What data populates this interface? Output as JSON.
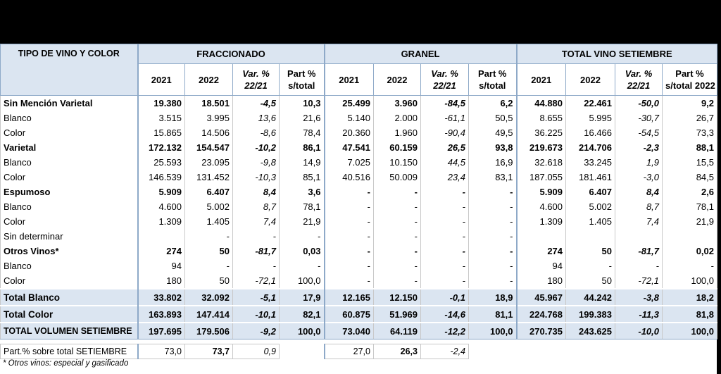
{
  "table": {
    "header": {
      "row_label": "TIPO DE VINO Y COLOR",
      "groups": [
        "FRACCIONADO",
        "GRANEL",
        "TOTAL VINO SETIEMBRE"
      ],
      "columns": [
        [
          [
            "2021"
          ],
          [
            "2022"
          ],
          [
            "Var. %",
            "22/21"
          ],
          [
            "Part %",
            "s/total"
          ]
        ],
        [
          [
            "2021"
          ],
          [
            "2022"
          ],
          [
            "Var. %",
            "22/21"
          ],
          [
            "Part %",
            "s/total"
          ]
        ],
        [
          [
            "2021"
          ],
          [
            "2022"
          ],
          [
            "Var. %",
            "22/21"
          ],
          [
            "Part %",
            "s/total 2022"
          ]
        ]
      ]
    },
    "rows": [
      [
        "Sin Mención Varietal",
        "19.380",
        "18.501",
        "-4,5",
        "10,3",
        "25.499",
        "3.960",
        "-84,5",
        "6,2",
        "44.880",
        "22.461",
        "-50,0",
        "9,2"
      ],
      [
        "Blanco",
        "3.515",
        "3.995",
        "13,6",
        "21,6",
        "5.140",
        "2.000",
        "-61,1",
        "50,5",
        "8.655",
        "5.995",
        "-30,7",
        "26,7"
      ],
      [
        "Color",
        "15.865",
        "14.506",
        "-8,6",
        "78,4",
        "20.360",
        "1.960",
        "-90,4",
        "49,5",
        "36.225",
        "16.466",
        "-54,5",
        "73,3"
      ],
      [
        "Varietal",
        "172.132",
        "154.547",
        "-10,2",
        "86,1",
        "47.541",
        "60.159",
        "26,5",
        "93,8",
        "219.673",
        "214.706",
        "-2,3",
        "88,1"
      ],
      [
        "Blanco",
        "25.593",
        "23.095",
        "-9,8",
        "14,9",
        "7.025",
        "10.150",
        "44,5",
        "16,9",
        "32.618",
        "33.245",
        "1,9",
        "15,5"
      ],
      [
        "Color",
        "146.539",
        "131.452",
        "-10,3",
        "85,1",
        "40.516",
        "50.009",
        "23,4",
        "83,1",
        "187.055",
        "181.461",
        "-3,0",
        "84,5"
      ],
      [
        "Espumoso",
        "5.909",
        "6.407",
        "8,4",
        "3,6",
        "-",
        "-",
        "-",
        "-",
        "5.909",
        "6.407",
        "8,4",
        "2,6"
      ],
      [
        "Blanco",
        "4.600",
        "5.002",
        "8,7",
        "78,1",
        "-",
        "-",
        "-",
        "-",
        "4.600",
        "5.002",
        "8,7",
        "78,1"
      ],
      [
        "Color",
        "1.309",
        "1.405",
        "7,4",
        "21,9",
        "-",
        "-",
        "-",
        "-",
        "1.309",
        "1.405",
        "7,4",
        "21,9"
      ],
      [
        "Sin determinar",
        null,
        "-",
        "-",
        "-",
        "-",
        "-",
        "-",
        "-",
        null,
        null,
        null,
        null
      ],
      [
        "Otros Vinos*",
        "274",
        "50",
        "-81,7",
        "0,03",
        "-",
        "-",
        "-",
        "-",
        "274",
        "50",
        "-81,7",
        "0,02"
      ],
      [
        "Blanco",
        "94",
        "-",
        "-",
        "-",
        "-",
        "-",
        "-",
        "-",
        "94",
        "-",
        "-",
        "-"
      ],
      [
        "Color",
        "180",
        "50",
        "-72,1",
        "100,0",
        "-",
        "-",
        "-",
        "-",
        "180",
        "50",
        "-72,1",
        "100,0"
      ]
    ],
    "totals": [
      [
        "Total Blanco",
        "33.802",
        "32.092",
        "-5,1",
        "17,9",
        "12.165",
        "12.150",
        "-0,1",
        "18,9",
        "45.967",
        "44.242",
        "-3,8",
        "18,2"
      ],
      [
        "Total Color",
        "163.893",
        "147.414",
        "-10,1",
        "82,1",
        "60.875",
        "51.969",
        "-14,6",
        "81,1",
        "224.768",
        "199.383",
        "-11,3",
        "81,8"
      ],
      [
        "TOTAL VOLUMEN SETIEMBRE",
        "197.695",
        "179.506",
        "-9,2",
        "100,0",
        "73.040",
        "64.119",
        "-12,2",
        "100,0",
        "270.735",
        "243.625",
        "-10,0",
        "100,0"
      ]
    ],
    "share_row": [
      "Part.% sobre total SETIEMBRE",
      "73,0",
      "73,7",
      "0,9",
      null,
      "27,0",
      "26,3",
      "-2,4",
      null
    ],
    "footnote": "* Otros vinos: especial y gasificado"
  }
}
